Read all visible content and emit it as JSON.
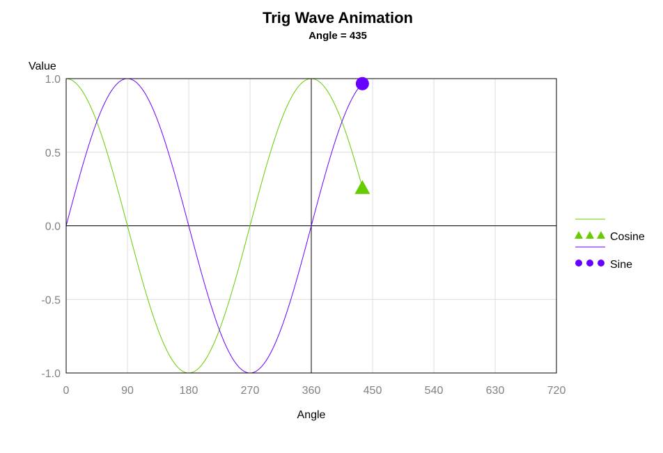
{
  "chart_data": {
    "type": "line",
    "title": "Trig Wave Animation",
    "subtitle": "Angle = 435",
    "xlabel": "Angle",
    "ylabel": "Value",
    "xlim": [
      0,
      720
    ],
    "ylim": [
      -1.0,
      1.0
    ],
    "x_ticks": [
      0,
      90,
      180,
      270,
      360,
      450,
      540,
      630,
      720
    ],
    "x_tick_labels": [
      "0",
      "90",
      "180",
      "270",
      "360",
      "450",
      "540",
      "630",
      "720"
    ],
    "y_ticks": [
      -1.0,
      -0.5,
      0.0,
      0.5,
      1.0
    ],
    "y_tick_labels": [
      "-1.0",
      "-0.5",
      "0.0",
      "0.5",
      "1.0"
    ],
    "grid": true,
    "reference_lines": {
      "x": 360,
      "y": 0
    },
    "legend_position": "right",
    "x_range_plotted": [
      0,
      435
    ],
    "series": [
      {
        "name": "Cosine",
        "function": "cos",
        "color": "#66cc00",
        "marker": "triangle",
        "current_marker": {
          "x": 435,
          "y": 0.2588
        }
      },
      {
        "name": "Sine",
        "function": "sin",
        "color": "#6600ff",
        "marker": "circle",
        "current_marker": {
          "x": 435,
          "y": 0.9659
        }
      }
    ]
  },
  "colors": {
    "grid": "#dcdcdc",
    "axis": "#000000",
    "tick_label": "#808080",
    "cosine": "#66cc00",
    "sine": "#6600ff"
  }
}
